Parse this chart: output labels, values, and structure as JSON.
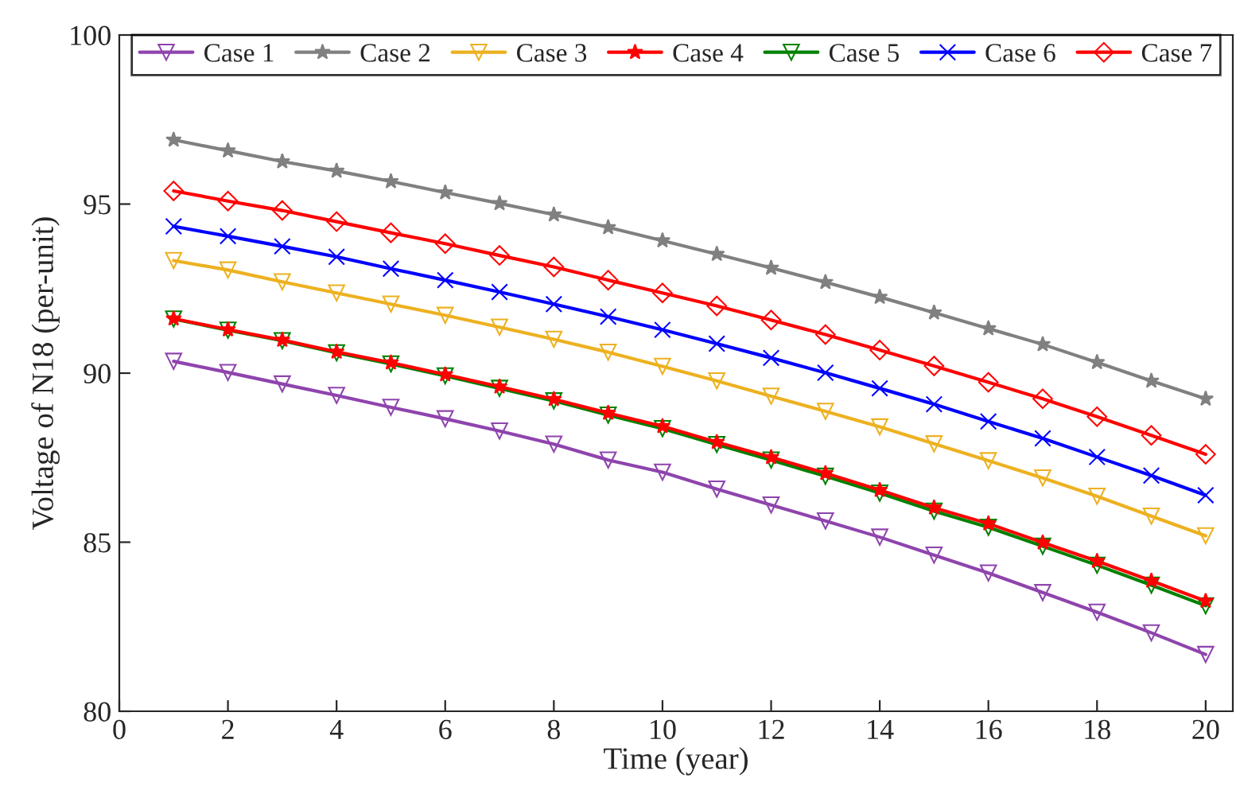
{
  "chart_data": {
    "type": "line",
    "xlabel": "Time (year)",
    "ylabel": "Voltage of N18 (per-unit)",
    "x": [
      1,
      2,
      3,
      4,
      5,
      6,
      7,
      8,
      9,
      10,
      11,
      12,
      13,
      14,
      15,
      16,
      17,
      18,
      19,
      20
    ],
    "xlim": [
      0,
      20.5
    ],
    "xticks": [
      0,
      2,
      4,
      6,
      8,
      10,
      12,
      14,
      16,
      18,
      20
    ],
    "ylim": [
      80,
      100
    ],
    "yticks": [
      80,
      85,
      90,
      95,
      100
    ],
    "grid": false,
    "legend": "top",
    "line_style": "solid",
    "series": [
      {
        "name": "Case 1",
        "color": "#8e44ad",
        "marker": "triangle",
        "values": [
          90.35,
          90.02,
          89.68,
          89.34,
          88.99,
          88.65,
          88.29,
          87.9,
          87.43,
          87.07,
          86.57,
          86.1,
          85.63,
          85.15,
          84.62,
          84.09,
          83.51,
          82.93,
          82.32,
          81.68
        ]
      },
      {
        "name": "Case 2",
        "color": "#808080",
        "marker": "star",
        "values": [
          96.9,
          96.58,
          96.26,
          95.98,
          95.67,
          95.34,
          95.02,
          94.69,
          94.31,
          93.92,
          93.52,
          93.11,
          92.69,
          92.25,
          91.79,
          91.32,
          90.85,
          90.32,
          89.77,
          89.24
        ]
      },
      {
        "name": "Case 3",
        "color": "#edb120",
        "marker": "triangle",
        "values": [
          93.33,
          93.05,
          92.7,
          92.37,
          92.04,
          91.71,
          91.36,
          91.0,
          90.62,
          90.2,
          89.77,
          89.32,
          88.87,
          88.41,
          87.91,
          87.41,
          86.9,
          86.36,
          85.77,
          85.19
        ]
      },
      {
        "name": "Case 4",
        "color": "#ff0000",
        "marker": "star",
        "values": [
          91.61,
          91.29,
          90.98,
          90.63,
          90.31,
          89.96,
          89.6,
          89.23,
          88.82,
          88.43,
          87.96,
          87.51,
          87.04,
          86.54,
          86.02,
          85.55,
          84.99,
          84.44,
          83.86,
          83.26
        ]
      },
      {
        "name": "Case 5",
        "color": "#008000",
        "marker": "triangle",
        "values": [
          91.6,
          91.27,
          90.96,
          90.6,
          90.27,
          89.92,
          89.55,
          89.18,
          88.76,
          88.36,
          87.89,
          87.43,
          86.95,
          86.45,
          85.92,
          85.44,
          84.88,
          84.32,
          83.73,
          83.12
        ]
      },
      {
        "name": "Case 6",
        "color": "#0000ff",
        "marker": "cross",
        "values": [
          94.34,
          94.05,
          93.75,
          93.44,
          93.09,
          92.75,
          92.4,
          92.04,
          91.67,
          91.28,
          90.87,
          90.45,
          90.01,
          89.55,
          89.08,
          88.57,
          88.07,
          87.52,
          86.97,
          86.39
        ]
      },
      {
        "name": "Case 7",
        "color": "#ff0000",
        "marker": "diamond",
        "values": [
          95.39,
          95.09,
          94.81,
          94.48,
          94.15,
          93.83,
          93.48,
          93.14,
          92.75,
          92.37,
          91.99,
          91.57,
          91.14,
          90.68,
          90.21,
          89.73,
          89.24,
          88.71,
          88.16,
          87.6
        ]
      }
    ]
  }
}
